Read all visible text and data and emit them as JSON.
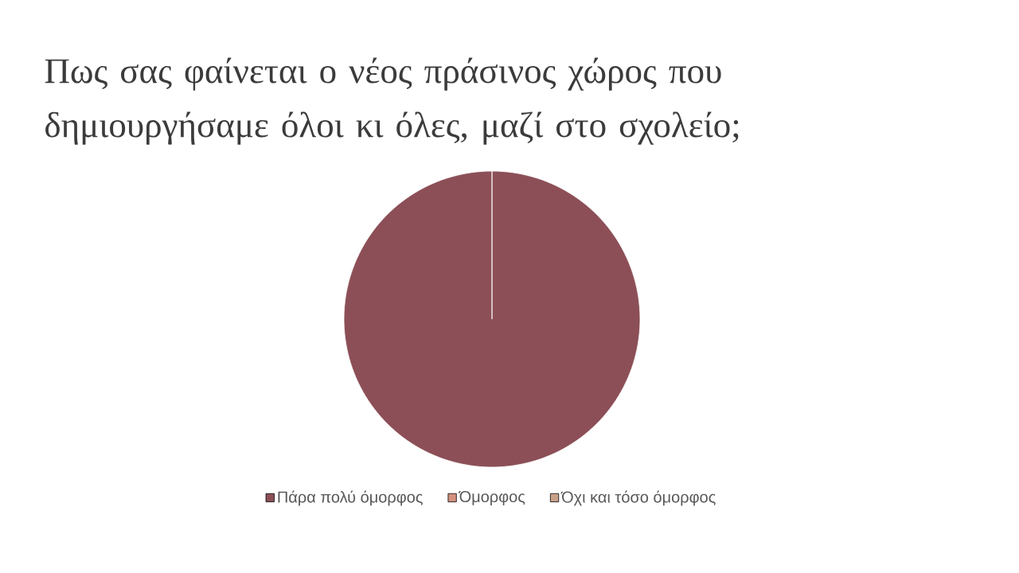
{
  "chart_data": {
    "type": "pie",
    "title": "Πως σας φαίνεται ο νέος πράσινος χώρος που δημιουργήσαμε όλοι κι όλες, μαζί στο σχολείο;",
    "categories": [
      "Πάρα πολύ όμορφος",
      "Όμορφος",
      "Όχι και τόσο όμορφος"
    ],
    "values": [
      100,
      0,
      0
    ],
    "colors": [
      "#8c4f57",
      "#d4907e",
      "#c9a088"
    ],
    "legend": "bottom"
  }
}
